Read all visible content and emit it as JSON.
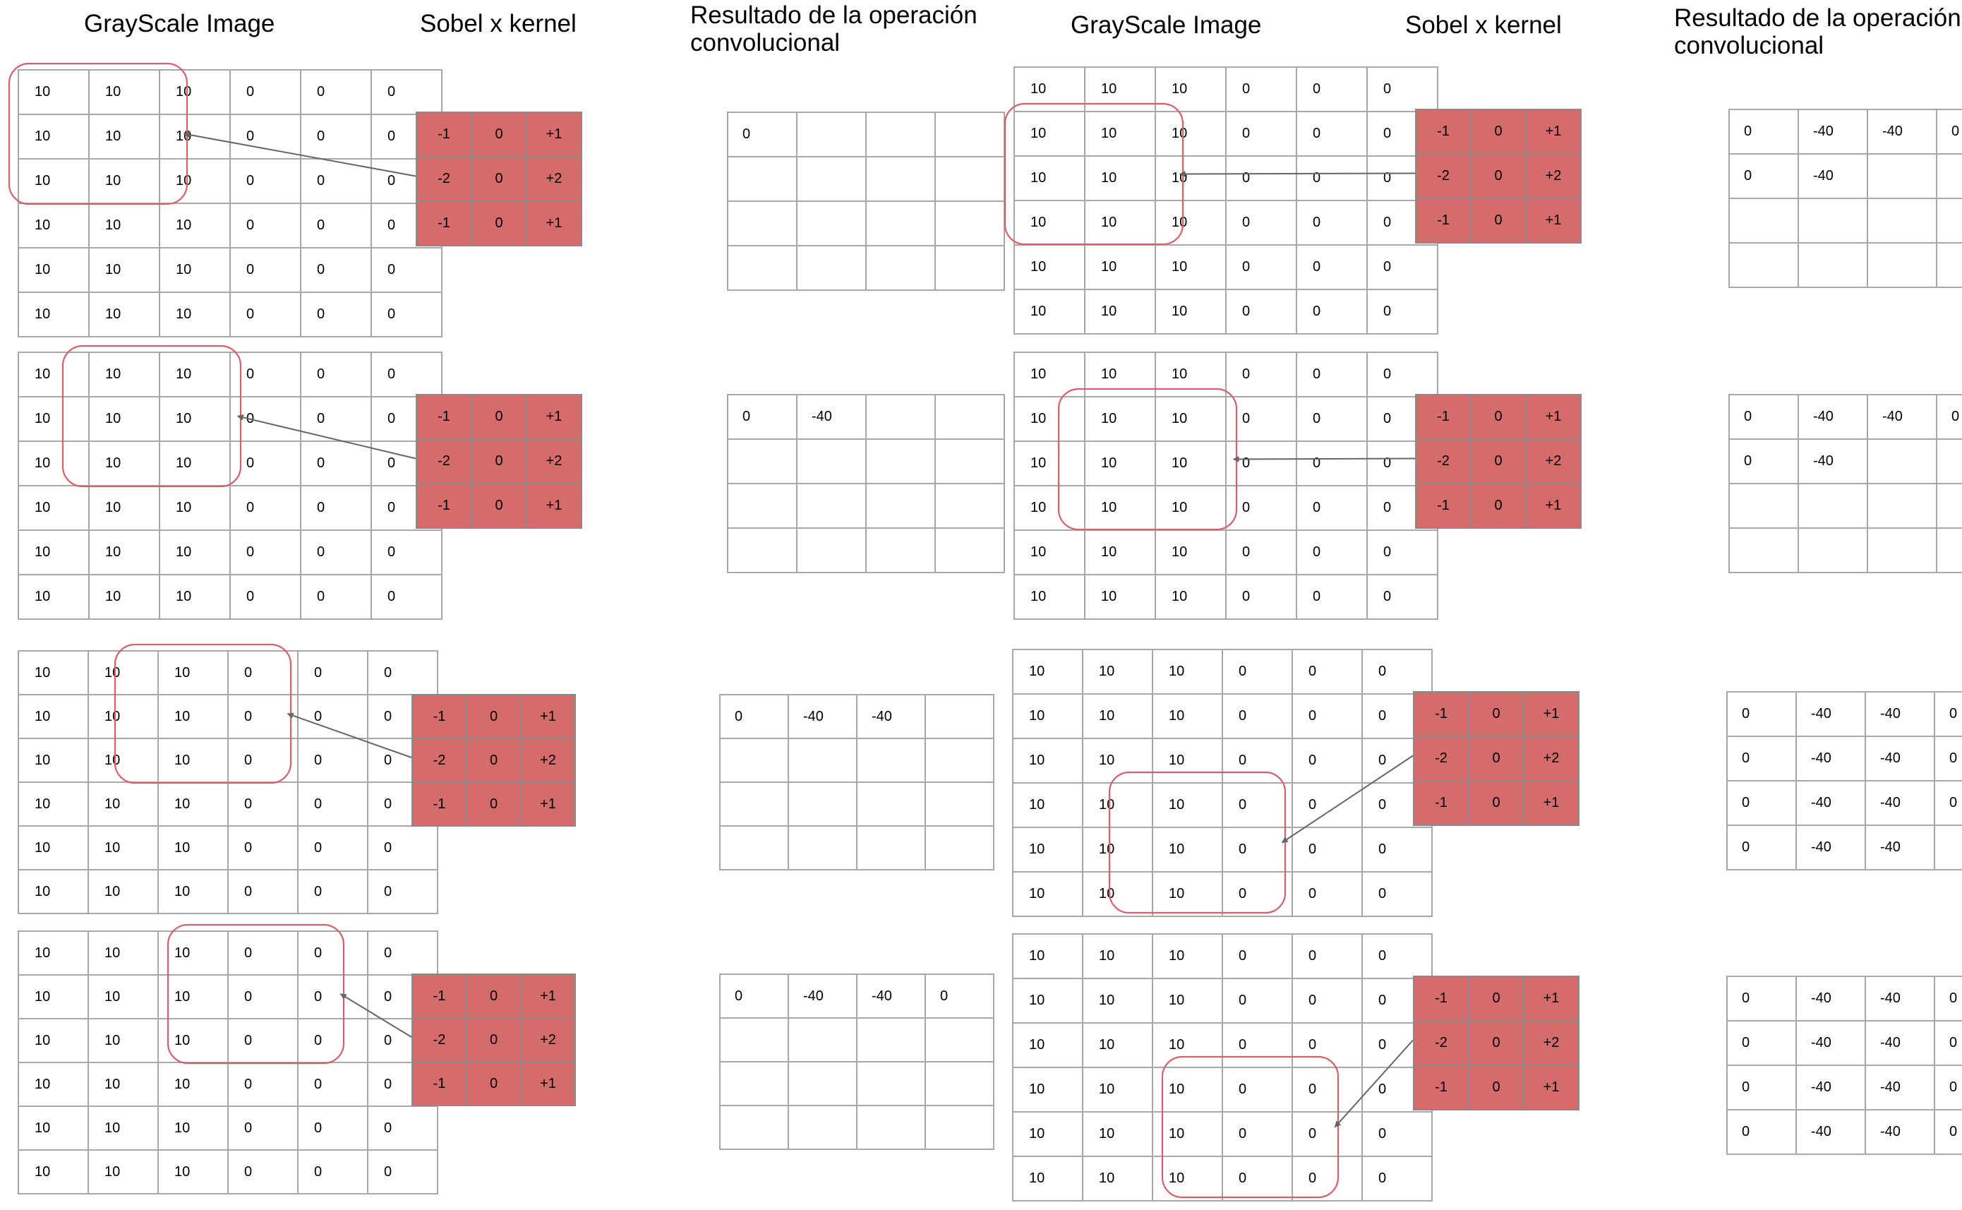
{
  "headers": {
    "grayscale": "GrayScale Image",
    "kernel": "Sobel x kernel",
    "result_line1": "Resultado de la operación",
    "result_line2": "convolucional"
  },
  "image_grid": [
    [
      "10",
      "10",
      "10",
      "0",
      "0",
      "0"
    ],
    [
      "10",
      "10",
      "10",
      "0",
      "0",
      "0"
    ],
    [
      "10",
      "10",
      "10",
      "0",
      "0",
      "0"
    ],
    [
      "10",
      "10",
      "10",
      "0",
      "0",
      "0"
    ],
    [
      "10",
      "10",
      "10",
      "0",
      "0",
      "0"
    ],
    [
      "10",
      "10",
      "10",
      "0",
      "0",
      "0"
    ]
  ],
  "sobel_x_kernel": [
    [
      "-1",
      "0",
      "+1"
    ],
    [
      "-2",
      "0",
      "+2"
    ],
    [
      "-1",
      "0",
      "+1"
    ]
  ],
  "steps": [
    {
      "window_row": 0,
      "window_col": 0,
      "result": [
        [
          "0",
          "",
          "",
          ""
        ],
        [
          "",
          "",
          "",
          ""
        ],
        [
          "",
          "",
          "",
          ""
        ],
        [
          "",
          "",
          "",
          ""
        ]
      ]
    },
    {
      "window_row": 0,
      "window_col": 1,
      "result": [
        [
          "0",
          "-40",
          "",
          ""
        ],
        [
          "",
          "",
          "",
          ""
        ],
        [
          "",
          "",
          "",
          ""
        ],
        [
          "",
          "",
          "",
          ""
        ]
      ]
    },
    {
      "window_row": 0,
      "window_col": 2,
      "result": [
        [
          "0",
          "-40",
          "-40",
          ""
        ],
        [
          "",
          "",
          "",
          ""
        ],
        [
          "",
          "",
          "",
          ""
        ],
        [
          "",
          "",
          "",
          ""
        ]
      ]
    },
    {
      "window_row": 0,
      "window_col": 3,
      "result": [
        [
          "0",
          "-40",
          "-40",
          "0"
        ],
        [
          "",
          "",
          "",
          ""
        ],
        [
          "",
          "",
          "",
          ""
        ],
        [
          "",
          "",
          "",
          ""
        ]
      ]
    },
    {
      "window_row": 1,
      "window_col": 0,
      "result": [
        [
          "0",
          "-40",
          "-40",
          "0"
        ],
        [
          "0",
          "-40",
          "",
          ""
        ],
        [
          "",
          "",
          "",
          ""
        ],
        [
          "",
          "",
          "",
          ""
        ]
      ]
    },
    {
      "window_row": 1,
      "window_col": 1,
      "result": [
        [
          "0",
          "-40",
          "-40",
          "0"
        ],
        [
          "0",
          "-40",
          "",
          ""
        ],
        [
          "",
          "",
          "",
          ""
        ],
        [
          "",
          "",
          "",
          ""
        ]
      ]
    },
    {
      "window_row": 3,
      "window_col": 2,
      "result": [
        [
          "0",
          "-40",
          "-40",
          "0"
        ],
        [
          "0",
          "-40",
          "-40",
          "0"
        ],
        [
          "0",
          "-40",
          "-40",
          "0"
        ],
        [
          "0",
          "-40",
          "-40",
          ""
        ]
      ]
    },
    {
      "window_row": 3,
      "window_col": 3,
      "result": [
        [
          "0",
          "-40",
          "-40",
          "0"
        ],
        [
          "0",
          "-40",
          "-40",
          "0"
        ],
        [
          "0",
          "-40",
          "-40",
          "0"
        ],
        [
          "0",
          "-40",
          "-40",
          "0"
        ]
      ]
    }
  ],
  "colors": {
    "kernel_fill": "#d56b6b",
    "grid_line": "#a8a8a8",
    "window_outline": "#d9606a",
    "arrow": "#666666"
  }
}
